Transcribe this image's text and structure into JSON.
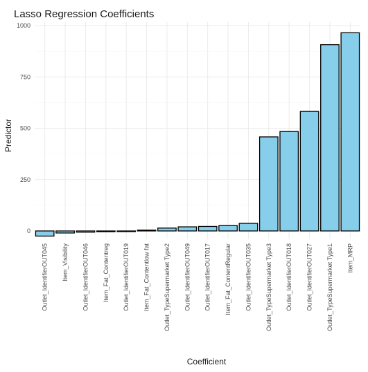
{
  "chart_data": {
    "type": "bar",
    "title": "Lasso Regression Coefficients",
    "xlabel": "Coefficient",
    "ylabel": "Predictor",
    "ylim": [
      -30,
      1000
    ],
    "yticks": [
      0,
      250,
      500,
      750,
      1000
    ],
    "grid": true,
    "bar_fill": "#87ceeb",
    "bar_stroke": "#000000",
    "categories": [
      "Outlet_IdentifierOUT045",
      "Item_Visibility",
      "Outlet_IdentifierOUT046",
      "Item_Fat_Contentreg",
      "Outlet_IdentifierOUT019",
      "Item_Fat_Contentlow fat",
      "Outlet_TypeSupermarket Type2",
      "Outlet_IdentifierOUT049",
      "Outlet_IdentifierOUT017",
      "Item_Fat_ContentRegular",
      "Outlet_IdentifierOUT035",
      "Outlet_TypeSupermarket Type3",
      "Outlet_IdentifierOUT018",
      "Outlet_IdentifierOUT027",
      "Outlet_TypeSupermarket Type1",
      "Item_MRP"
    ],
    "values": [
      -25,
      -10,
      -6,
      -4,
      -2,
      4,
      14,
      20,
      22,
      26,
      37,
      458,
      484,
      582,
      907,
      965
    ]
  }
}
